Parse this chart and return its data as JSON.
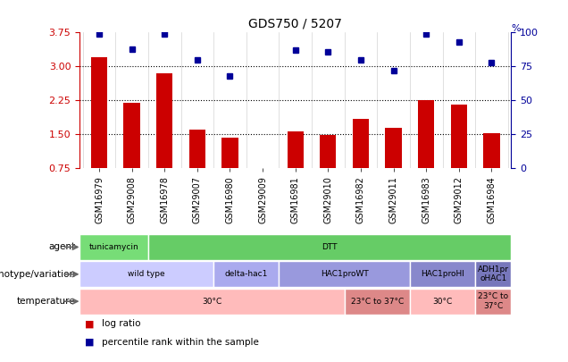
{
  "title": "GDS750 / 5207",
  "samples": [
    "GSM16979",
    "GSM29008",
    "GSM16978",
    "GSM29007",
    "GSM16980",
    "GSM29009",
    "GSM16981",
    "GSM29010",
    "GSM16982",
    "GSM29011",
    "GSM16983",
    "GSM29012",
    "GSM16984"
  ],
  "log_ratio": [
    3.2,
    2.2,
    2.85,
    1.6,
    1.42,
    null,
    1.57,
    1.49,
    1.85,
    1.65,
    2.25,
    2.15,
    1.52
  ],
  "percentile": [
    99,
    88,
    99,
    80,
    68,
    null,
    87,
    86,
    80,
    72,
    99,
    93,
    78
  ],
  "ylim_left": [
    0.75,
    3.75
  ],
  "ylim_right": [
    0,
    100
  ],
  "yticks_left": [
    0.75,
    1.5,
    2.25,
    3.0,
    3.75
  ],
  "yticks_right": [
    0,
    25,
    50,
    75,
    100
  ],
  "bar_color": "#cc0000",
  "dot_color": "#000099",
  "grid_values": [
    1.5,
    2.25,
    3.0
  ],
  "agent_row": [
    {
      "label": "tunicamycin",
      "start": 0,
      "end": 2,
      "color": "#77dd77"
    },
    {
      "label": "DTT",
      "start": 2,
      "end": 13,
      "color": "#66cc66"
    }
  ],
  "genotype_row": [
    {
      "label": "wild type",
      "start": 0,
      "end": 4,
      "color": "#ccccff"
    },
    {
      "label": "delta-hac1",
      "start": 4,
      "end": 6,
      "color": "#aaaaee"
    },
    {
      "label": "HAC1proWT",
      "start": 6,
      "end": 10,
      "color": "#9999dd"
    },
    {
      "label": "HAC1proHI",
      "start": 10,
      "end": 12,
      "color": "#8888cc"
    },
    {
      "label": "ADH1pr\noHAC1",
      "start": 12,
      "end": 13,
      "color": "#7777bb"
    }
  ],
  "temperature_row": [
    {
      "label": "30°C",
      "start": 0,
      "end": 8,
      "color": "#ffbbbb"
    },
    {
      "label": "23°C to 37°C",
      "start": 8,
      "end": 10,
      "color": "#dd8888"
    },
    {
      "label": "30°C",
      "start": 10,
      "end": 12,
      "color": "#ffbbbb"
    },
    {
      "label": "23°C to\n37°C",
      "start": 12,
      "end": 13,
      "color": "#dd8888"
    }
  ],
  "legend_bar_label": "log ratio",
  "legend_dot_label": "percentile rank within the sample",
  "row_labels": [
    "agent",
    "genotype/variation",
    "temperature"
  ],
  "background_color": "#ffffff"
}
